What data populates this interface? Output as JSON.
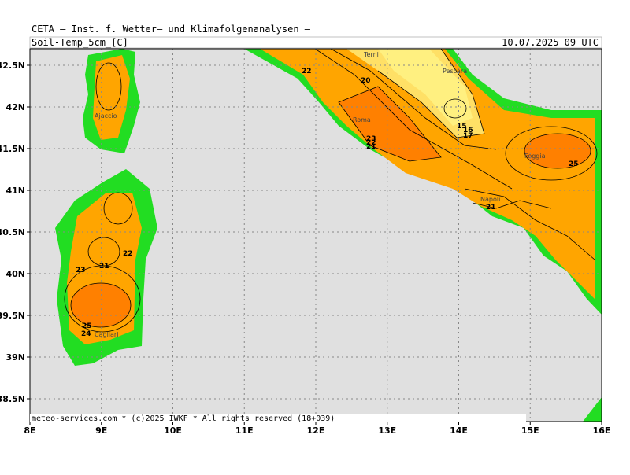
{
  "header": {
    "title": "CETA — Inst. f. Wetter— und Klimafolgenanalysen —",
    "parameter": "Soil-Temp_5cm_[C]",
    "valid_time": "10.07.2025 09 UTC"
  },
  "map": {
    "lat_labels": [
      "42.5N",
      "42N",
      "41.5N",
      "41N",
      "40.5N",
      "40N",
      "39.5N",
      "39N",
      "38.5N"
    ],
    "lon_labels": [
      "8E",
      "9E",
      "10E",
      "11E",
      "12E",
      "13E",
      "14E",
      "15E",
      "16E"
    ],
    "places": [
      "Ajaccio",
      "Roma",
      "Terni",
      "Pescara",
      "Foggia",
      "Napoli",
      "Cagliari"
    ],
    "contour_labels": [
      "22",
      "20",
      "23",
      "22",
      "21",
      "15",
      "16",
      "17",
      "25",
      "21",
      "22",
      "21",
      "23",
      "25",
      "24"
    ]
  },
  "footer": "meteo-services.com * (c)2025 IWKF * All rights reserved (18+039)"
}
